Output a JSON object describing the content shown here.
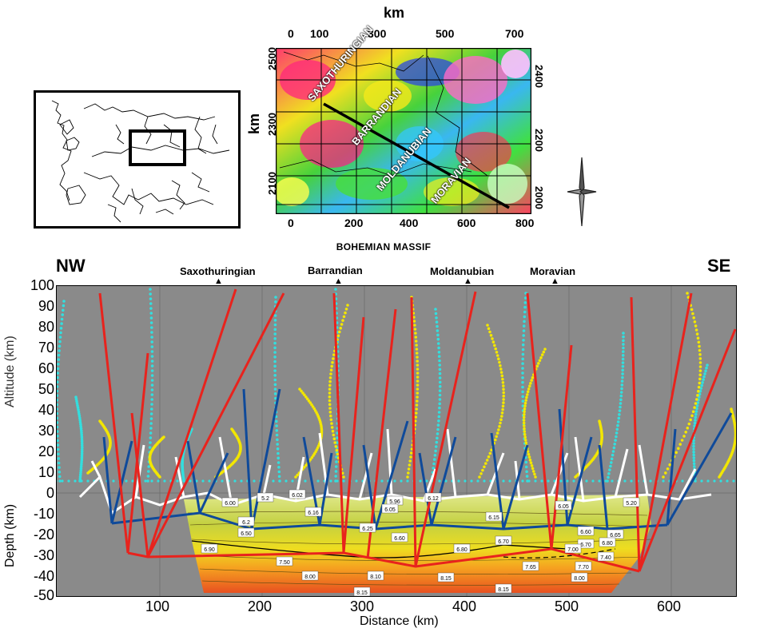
{
  "map": {
    "top_axis_title": "km",
    "top_ticks": [
      "0",
      "100",
      "300",
      "500",
      "700"
    ],
    "left_axis_title": "km",
    "left_ticks": [
      "2500",
      "2300",
      "2100"
    ],
    "right_ticks": [
      "2400",
      "2200",
      "2000"
    ],
    "bottom_ticks": [
      "0",
      "200",
      "400",
      "600",
      "800"
    ],
    "unit_labels": [
      "SAXOTHURINGIAN",
      "BARRANDIAN",
      "MOLDANUBIAN",
      "MORAVIAN"
    ],
    "caption": "BOHEMIAN MASSIF"
  },
  "section": {
    "left_direction": "NW",
    "right_direction": "SE",
    "unit_markers": [
      "Saxothuringian",
      "Barrandian",
      "Moldanubian",
      "Moravian"
    ],
    "y_ticks": [
      "100",
      "90",
      "80",
      "70",
      "60",
      "50",
      "40",
      "30",
      "20",
      "10",
      "0",
      "-10",
      "-20",
      "-30",
      "-40",
      "-50"
    ],
    "x_ticks": [
      "100",
      "200",
      "300",
      "400",
      "500",
      "600"
    ],
    "altitude_label": "Altitude (km)",
    "depth_label": "Depth (km)",
    "x_label": "Distance (km)",
    "velocity_labels": [
      "6.00",
      "5.2",
      "6.02",
      "6.2",
      "6.16",
      "6.50",
      "6.90",
      "7.50",
      "8.00",
      "5.96",
      "6.05",
      "6.25",
      "6.12",
      "6.15",
      "6.60",
      "6.80",
      "6.70",
      "8.10",
      "8.15",
      "8.15",
      "8.15",
      "6.05",
      "5.20",
      "6.60",
      "6.65",
      "6.70",
      "6.80",
      "7.00",
      "7.40",
      "7.65",
      "7.70",
      "8.00"
    ]
  },
  "colors": {
    "plot_bg": "#8a8a8a",
    "ray_red": "#e8231d",
    "ray_blue": "#0f4a9a",
    "ray_white": "#ffffff",
    "dots_yellow": "#f2e600",
    "dots_cyan": "#33dede"
  }
}
